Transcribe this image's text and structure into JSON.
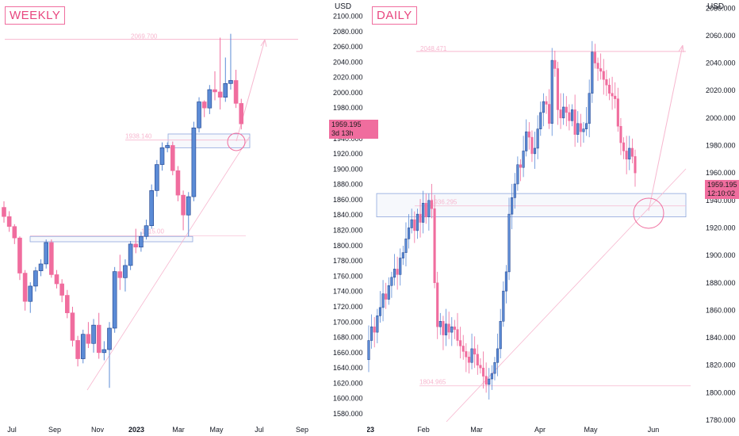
{
  "left": {
    "title": "WEEKLY",
    "unit": "USD",
    "price_badge": {
      "price": "1959.195",
      "countdown": "3d 13h"
    },
    "colors": {
      "up": "#5b8bd6",
      "down": "#f06d9e",
      "zone": "#8fa7dd",
      "line": "#f7b7cf"
    }
  },
  "right": {
    "title": "DAILY",
    "unit": "USD",
    "price_badge": {
      "price": "1959.195",
      "countdown": "12:10:02"
    },
    "colors": {
      "up": "#5b8bd6",
      "down": "#f06d9e",
      "zone": "#8fa7dd",
      "line": "#f7b7cf"
    }
  },
  "chart_data": [
    {
      "type": "candlestick",
      "title": "WEEKLY",
      "ylabel": "USD",
      "x_ticks": [
        "Jul",
        "Sep",
        "Nov",
        "2023",
        "Mar",
        "May",
        "Jul",
        "Sep"
      ],
      "y_ticks": [
        1580,
        1600,
        1620,
        1640,
        1660,
        1680,
        1700,
        1720,
        1740,
        1760,
        1780,
        1800,
        1820,
        1840,
        1860,
        1880,
        1900,
        1920,
        1940,
        1960,
        1980,
        2000,
        2020,
        2040,
        2060,
        2080,
        2100
      ],
      "ylim": [
        1570,
        2110
      ],
      "last_price": 1959.195,
      "candles": [
        [
          1850,
          1858,
          1830,
          1838
        ],
        [
          1838,
          1845,
          1818,
          1825
        ],
        [
          1825,
          1828,
          1802,
          1810
        ],
        [
          1810,
          1812,
          1755,
          1764
        ],
        [
          1764,
          1768,
          1715,
          1727
        ],
        [
          1727,
          1752,
          1712,
          1747
        ],
        [
          1747,
          1772,
          1740,
          1767
        ],
        [
          1767,
          1782,
          1760,
          1776
        ],
        [
          1776,
          1808,
          1770,
          1804
        ],
        [
          1804,
          1808,
          1758,
          1762
        ],
        [
          1762,
          1768,
          1744,
          1750
        ],
        [
          1750,
          1756,
          1726,
          1735
        ],
        [
          1735,
          1742,
          1705,
          1712
        ],
        [
          1712,
          1720,
          1668,
          1676
        ],
        [
          1676,
          1682,
          1642,
          1652
        ],
        [
          1652,
          1690,
          1646,
          1684
        ],
        [
          1684,
          1700,
          1666,
          1672
        ],
        [
          1672,
          1704,
          1660,
          1696
        ],
        [
          1696,
          1712,
          1652,
          1660
        ],
        [
          1660,
          1675,
          1650,
          1664
        ],
        [
          1664,
          1700,
          1614,
          1692
        ],
        [
          1692,
          1772,
          1686,
          1766
        ],
        [
          1766,
          1788,
          1742,
          1758
        ],
        [
          1758,
          1782,
          1740,
          1774
        ],
        [
          1774,
          1806,
          1768,
          1802
        ],
        [
          1802,
          1822,
          1790,
          1798
        ],
        [
          1798,
          1818,
          1792,
          1812
        ],
        [
          1812,
          1834,
          1808,
          1826
        ],
        [
          1826,
          1880,
          1822,
          1872
        ],
        [
          1872,
          1912,
          1864,
          1906
        ],
        [
          1906,
          1935,
          1898,
          1928
        ],
        [
          1928,
          1935,
          1922,
          1931
        ],
        [
          1931,
          1936,
          1892,
          1898
        ],
        [
          1898,
          1904,
          1858,
          1866
        ],
        [
          1866,
          1872,
          1820,
          1840
        ],
        [
          1840,
          1870,
          1812,
          1864
        ],
        [
          1864,
          1962,
          1858,
          1954
        ],
        [
          1954,
          1994,
          1948,
          1988
        ],
        [
          1988,
          1990,
          1968,
          1980
        ],
        [
          1980,
          2010,
          1972,
          2004
        ],
        [
          2004,
          2028,
          1990,
          2001
        ],
        [
          2001,
          2072,
          1978,
          1994
        ],
        [
          1994,
          2046,
          1988,
          2012
        ],
        [
          2012,
          2077,
          2004,
          2016
        ],
        [
          2016,
          2030,
          1980,
          1986
        ],
        [
          1986,
          1992,
          1952,
          1959.195
        ]
      ],
      "annotations": [
        {
          "type": "horizontal",
          "label": "2069.700",
          "value": 2069.7
        },
        {
          "type": "zone",
          "label": "1938.140",
          "from": 1928,
          "to": 1946
        },
        {
          "type": "zone",
          "label": "1815.00",
          "from": 1805,
          "to": 1812
        },
        {
          "type": "trendline",
          "from_label": "Nov",
          "to_label": "Jul"
        }
      ]
    },
    {
      "type": "candlestick",
      "title": "DAILY",
      "ylabel": "USD",
      "x_ticks": [
        "23",
        "Feb",
        "Mar",
        "Apr",
        "May",
        "Jun"
      ],
      "y_ticks": [
        1780,
        1800,
        1820,
        1840,
        1860,
        1880,
        1900,
        1920,
        1940,
        1960,
        1980,
        2000,
        2020,
        2040,
        2060,
        2080
      ],
      "ylim": [
        1770,
        2090
      ],
      "last_price": 1959.195,
      "annotations": [
        {
          "type": "horizontal",
          "label": "2048.471",
          "value": 2048.471
        },
        {
          "type": "zone",
          "label": "1936.295",
          "from": 1928,
          "to": 1945
        },
        {
          "type": "horizontal",
          "label": "1804.965",
          "value": 1804.965
        },
        {
          "type": "trendline",
          "from_label": "Mar",
          "to_label": "Jun"
        }
      ]
    }
  ]
}
